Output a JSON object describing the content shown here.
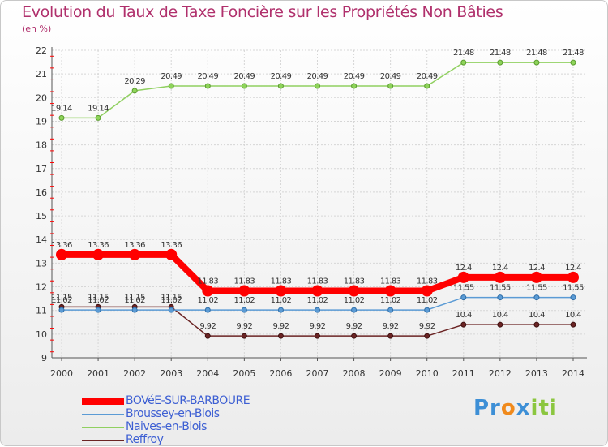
{
  "chart_data": {
    "type": "line",
    "title": "Evolution du Taux de Taxe Foncière sur les Propriétés Non Bâties",
    "ylabel": "(en %)",
    "xlabel": "",
    "ylim": [
      9,
      22
    ],
    "yticks": [
      9,
      10,
      11,
      12,
      13,
      14,
      15,
      16,
      17,
      18,
      19,
      20,
      21,
      22
    ],
    "categories": [
      "2000",
      "2001",
      "2002",
      "2003",
      "2004",
      "2005",
      "2006",
      "2007",
      "2008",
      "2009",
      "2010",
      "2011",
      "2012",
      "2013",
      "2014"
    ],
    "series": [
      {
        "name": "Naives-en-Blois",
        "color": "#90d060",
        "values": [
          19.14,
          19.14,
          20.29,
          20.49,
          20.49,
          20.49,
          20.49,
          20.49,
          20.49,
          20.49,
          20.49,
          21.48,
          21.48,
          21.48,
          21.48
        ]
      },
      {
        "name": "Reffroy",
        "color": "#6b2424",
        "values": [
          11.15,
          11.15,
          11.15,
          11.15,
          9.92,
          9.92,
          9.92,
          9.92,
          9.92,
          9.92,
          9.92,
          10.4,
          10.4,
          10.4,
          10.4
        ]
      },
      {
        "name": "Broussey-en-Blois",
        "color": "#5b9bd5",
        "values": [
          11.02,
          11.02,
          11.02,
          11.02,
          11.02,
          11.02,
          11.02,
          11.02,
          11.02,
          11.02,
          11.02,
          11.55,
          11.55,
          11.55,
          11.55
        ]
      },
      {
        "name": "BOVéE-SUR-BARBOURE",
        "color": "#ff0000",
        "values": [
          13.36,
          13.36,
          13.36,
          13.36,
          11.83,
          11.83,
          11.83,
          11.83,
          11.83,
          11.83,
          11.83,
          12.4,
          12.4,
          12.4,
          12.4
        ]
      }
    ],
    "legend": [
      "BOVéE-SUR-BARBOURE",
      "Broussey-en-Blois",
      "Naives-en-Blois",
      "Reffroy"
    ],
    "legend_position": "bottom-left",
    "grid": true
  },
  "logo": {
    "part1": "Pr",
    "part2": "o",
    "part3": "x",
    "part4": "iti"
  }
}
